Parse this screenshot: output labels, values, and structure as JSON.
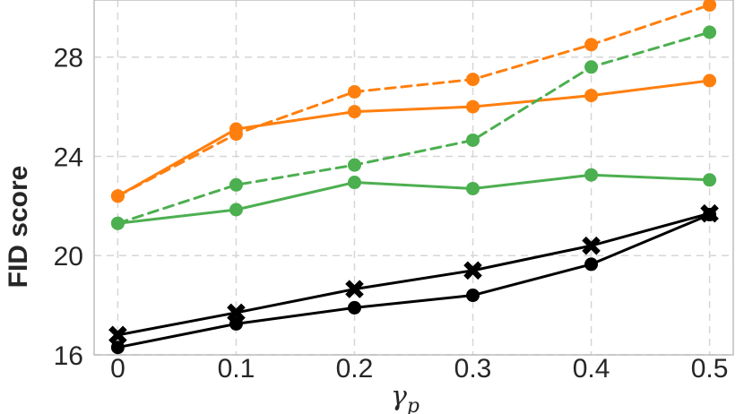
{
  "chart_data": {
    "type": "line",
    "title": "",
    "xlabel": "γ",
    "xlabel_subscript": "p",
    "ylabel": "FID score",
    "x": [
      0,
      0.1,
      0.2,
      0.3,
      0.4,
      0.5
    ],
    "x_tick_labels": [
      "0",
      "0.1",
      "0.2",
      "0.3",
      "0.4",
      "0.5"
    ],
    "y_ticks": [
      16,
      20,
      24,
      28
    ],
    "y_tick_labels": [
      "16",
      "20",
      "24",
      "28"
    ],
    "xlim": [
      -0.02,
      0.52
    ],
    "ylim": [
      16.0,
      30.3
    ],
    "grid": true,
    "legend": "none",
    "series": [
      {
        "name": "orange-dashed",
        "color": "#ff7f0e",
        "dash": true,
        "marker": "circle",
        "values": [
          22.4,
          24.9,
          26.6,
          27.1,
          28.5,
          30.1
        ]
      },
      {
        "name": "orange-solid",
        "color": "#ff7f0e",
        "dash": false,
        "marker": "circle",
        "values": [
          22.4,
          25.1,
          25.8,
          26.0,
          26.45,
          27.05
        ]
      },
      {
        "name": "green-dashed",
        "color": "#4caf50",
        "dash": true,
        "marker": "circle",
        "values": [
          21.3,
          22.85,
          23.65,
          24.65,
          27.6,
          29.0
        ]
      },
      {
        "name": "green-solid",
        "color": "#4caf50",
        "dash": false,
        "marker": "circle",
        "values": [
          21.3,
          21.85,
          22.95,
          22.7,
          23.25,
          23.05
        ]
      },
      {
        "name": "black-x",
        "color": "#000000",
        "dash": false,
        "marker": "x",
        "values": [
          16.8,
          17.7,
          18.65,
          19.4,
          20.4,
          21.7
        ]
      },
      {
        "name": "black-dot",
        "color": "#000000",
        "dash": false,
        "marker": "circle",
        "values": [
          16.3,
          17.25,
          17.9,
          18.4,
          19.65,
          21.65
        ]
      }
    ]
  }
}
